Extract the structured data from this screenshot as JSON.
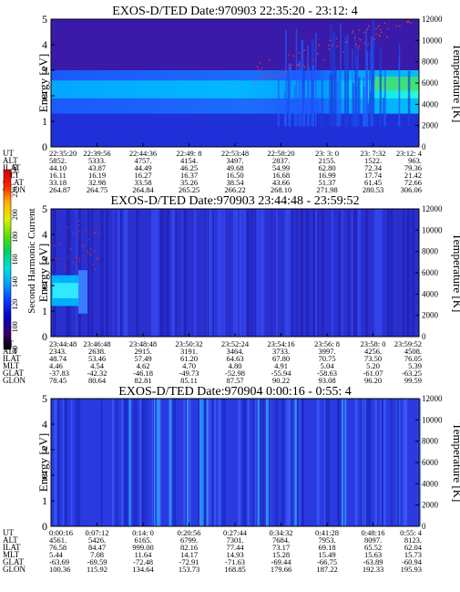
{
  "colorbar": {
    "label": "Second Harmonic Current",
    "ticks": [
      "80",
      "100",
      "120",
      "140",
      "160",
      "180",
      "200",
      "220",
      "240"
    ],
    "stops": [
      "#000000",
      "#3a0070",
      "#0000c8",
      "#0a3cff",
      "#00a0ff",
      "#00e0e0",
      "#00d060",
      "#60e000",
      "#e0f000",
      "#ffb000",
      "#ff2000",
      "#d00000"
    ]
  },
  "row_labels": [
    "UT",
    "ALT",
    "ILAT",
    "MLT",
    "GLAT",
    "GLON"
  ],
  "chart_data": [
    {
      "type": "heatmap",
      "title": "EXOS-D/TED   Date:970903  22:35:20 - 23:12: 4",
      "ylabel": "Energy [eV]",
      "y2label": "Temperature [K]",
      "ylim": [
        0,
        5
      ],
      "y2lim": [
        0,
        12000
      ],
      "yticks": [
        "0",
        "1",
        "2",
        "3",
        "4",
        "5"
      ],
      "y2ticks": [
        "0",
        "2000",
        "4000",
        "6000",
        "8000",
        "10000",
        "12000"
      ],
      "columns": [
        {
          "UT": "22:35:20",
          "ALT": "5852.",
          "ILAT": "44.10",
          "MLT": "16.11",
          "GLAT": "33.18",
          "GLON": "264.87"
        },
        {
          "UT": "22:39:56",
          "ALT": "5333.",
          "ILAT": "43.87",
          "MLT": "16.19",
          "GLAT": "32.98",
          "GLON": "264.75"
        },
        {
          "UT": "22:44:36",
          "ALT": "4757.",
          "ILAT": "44.49",
          "MLT": "16.27",
          "GLAT": "33.58",
          "GLON": "264.84"
        },
        {
          "UT": "22:49: 8",
          "ALT": "4154.",
          "ILAT": "46.25",
          "MLT": "16.37",
          "GLAT": "35.26",
          "GLON": "265.25"
        },
        {
          "UT": "22:53:48",
          "ALT": "3497.",
          "ILAT": "49.68",
          "MLT": "16.50",
          "GLAT": "38.54",
          "GLON": "266.22"
        },
        {
          "UT": "22:58:20",
          "ALT": "2837.",
          "ILAT": "54.99",
          "MLT": "16.68",
          "GLAT": "43.66",
          "GLON": "268.10"
        },
        {
          "UT": "23: 3: 0",
          "ALT": "2155.",
          "ILAT": "62.80",
          "MLT": "16.99",
          "GLAT": "51.37",
          "GLON": "271.98"
        },
        {
          "UT": "23: 7:32",
          "ALT": "1522.",
          "ILAT": "72.34",
          "MLT": "17.74",
          "GLAT": "61.45",
          "GLON": "280.53"
        },
        {
          "UT": "23:12: 4",
          "ALT": "963.",
          "ILAT": "79.36",
          "MLT": "21.42",
          "GLAT": "72.66",
          "GLON": "306.06"
        }
      ]
    },
    {
      "type": "heatmap",
      "title": "EXOS-D/TED   Date:970903  23:44:48 - 23:59:52",
      "ylabel": "Energy [eV]",
      "y2label": "Temperature [K]",
      "ylim": [
        0,
        5
      ],
      "y2lim": [
        0,
        12000
      ],
      "yticks": [
        "0",
        "1",
        "2",
        "3",
        "4",
        "5"
      ],
      "y2ticks": [
        "0",
        "2000",
        "4000",
        "6000",
        "8000",
        "10000",
        "12000"
      ],
      "columns": [
        {
          "UT": "23:44:48",
          "ALT": "2343.",
          "ILAT": "48.74",
          "MLT": "4.46",
          "GLAT": "-37.83",
          "GLON": "78.45"
        },
        {
          "UT": "23:46:48",
          "ALT": "2638.",
          "ILAT": "53.46",
          "MLT": "4.54",
          "GLAT": "-42.32",
          "GLON": "80.64"
        },
        {
          "UT": "23:48:48",
          "ALT": "2915.",
          "ILAT": "57.49",
          "MLT": "4.62",
          "GLAT": "-46.18",
          "GLON": "82.81"
        },
        {
          "UT": "23:50:32",
          "ALT": "3191.",
          "ILAT": "61.20",
          "MLT": "4.70",
          "GLAT": "-49.73",
          "GLON": "85.11"
        },
        {
          "UT": "23:52:24",
          "ALT": "3464.",
          "ILAT": "64.63",
          "MLT": "4.80",
          "GLAT": "-52.98",
          "GLON": "87.57"
        },
        {
          "UT": "23:54:16",
          "ALT": "3733.",
          "ILAT": "67.80",
          "MLT": "4.91",
          "GLAT": "-55.94",
          "GLON": "90.22"
        },
        {
          "UT": "23:56: 8",
          "ALT": "3997.",
          "ILAT": "70.75",
          "MLT": "5.04",
          "GLAT": "-58.63",
          "GLON": "93.08"
        },
        {
          "UT": "23:58: 0",
          "ALT": "4256.",
          "ILAT": "73.50",
          "MLT": "5.20",
          "GLAT": "-61.07",
          "GLON": "96.20"
        },
        {
          "UT": "23:59:52",
          "ALT": "4508.",
          "ILAT": "76.05",
          "MLT": "5.39",
          "GLAT": "-63.25",
          "GLON": "99.59"
        }
      ]
    },
    {
      "type": "heatmap",
      "title": "EXOS-D/TED   Date:970904   0:00:16 - 0:55: 4",
      "ylabel": "Energy [eV]",
      "y2label": "Temperature [K]",
      "ylim": [
        0,
        5
      ],
      "y2lim": [
        0,
        12000
      ],
      "yticks": [
        "0",
        "1",
        "2",
        "3",
        "4",
        "5"
      ],
      "y2ticks": [
        "0",
        "2000",
        "4000",
        "6000",
        "8000",
        "10000",
        "12000"
      ],
      "columns": [
        {
          "UT": "0:00:16",
          "ALT": "4561.",
          "ILAT": "76.58",
          "MLT": "5.44",
          "GLAT": "-63.69",
          "GLON": "100.36"
        },
        {
          "UT": "0:07:12",
          "ALT": "5426.",
          "ILAT": "84.47",
          "MLT": "7.08",
          "GLAT": "-69.59",
          "GLON": "115.92"
        },
        {
          "UT": "0:14: 0",
          "ALT": "6165.",
          "ILAT": "999.00",
          "MLT": "11.64",
          "GLAT": "-72.48",
          "GLON": "134.64"
        },
        {
          "UT": "0:20:56",
          "ALT": "6799.",
          "ILAT": "82.16",
          "MLT": "14.17",
          "GLAT": "-72.91",
          "GLON": "153.73"
        },
        {
          "UT": "0:27:44",
          "ALT": "7301.",
          "ILAT": "77.44",
          "MLT": "14.93",
          "GLAT": "-71.63",
          "GLON": "168.85"
        },
        {
          "UT": "0:34:32",
          "ALT": "7684.",
          "ILAT": "73.17",
          "MLT": "15.28",
          "GLAT": "-69.44",
          "GLON": "179.66"
        },
        {
          "UT": "0:41:28",
          "ALT": "7953.",
          "ILAT": "69.18",
          "MLT": "15.49",
          "GLAT": "-66.75",
          "GLON": "187.22"
        },
        {
          "UT": "0:48:16",
          "ALT": "8097.",
          "ILAT": "65.52",
          "MLT": "15.63",
          "GLAT": "-63.89",
          "GLON": "192.33"
        },
        {
          "UT": "0:55: 4",
          "ALT": "8123.",
          "ILAT": "62.04",
          "MLT": "15.73",
          "GLAT": "-60.94",
          "GLON": "195.93"
        }
      ]
    }
  ]
}
